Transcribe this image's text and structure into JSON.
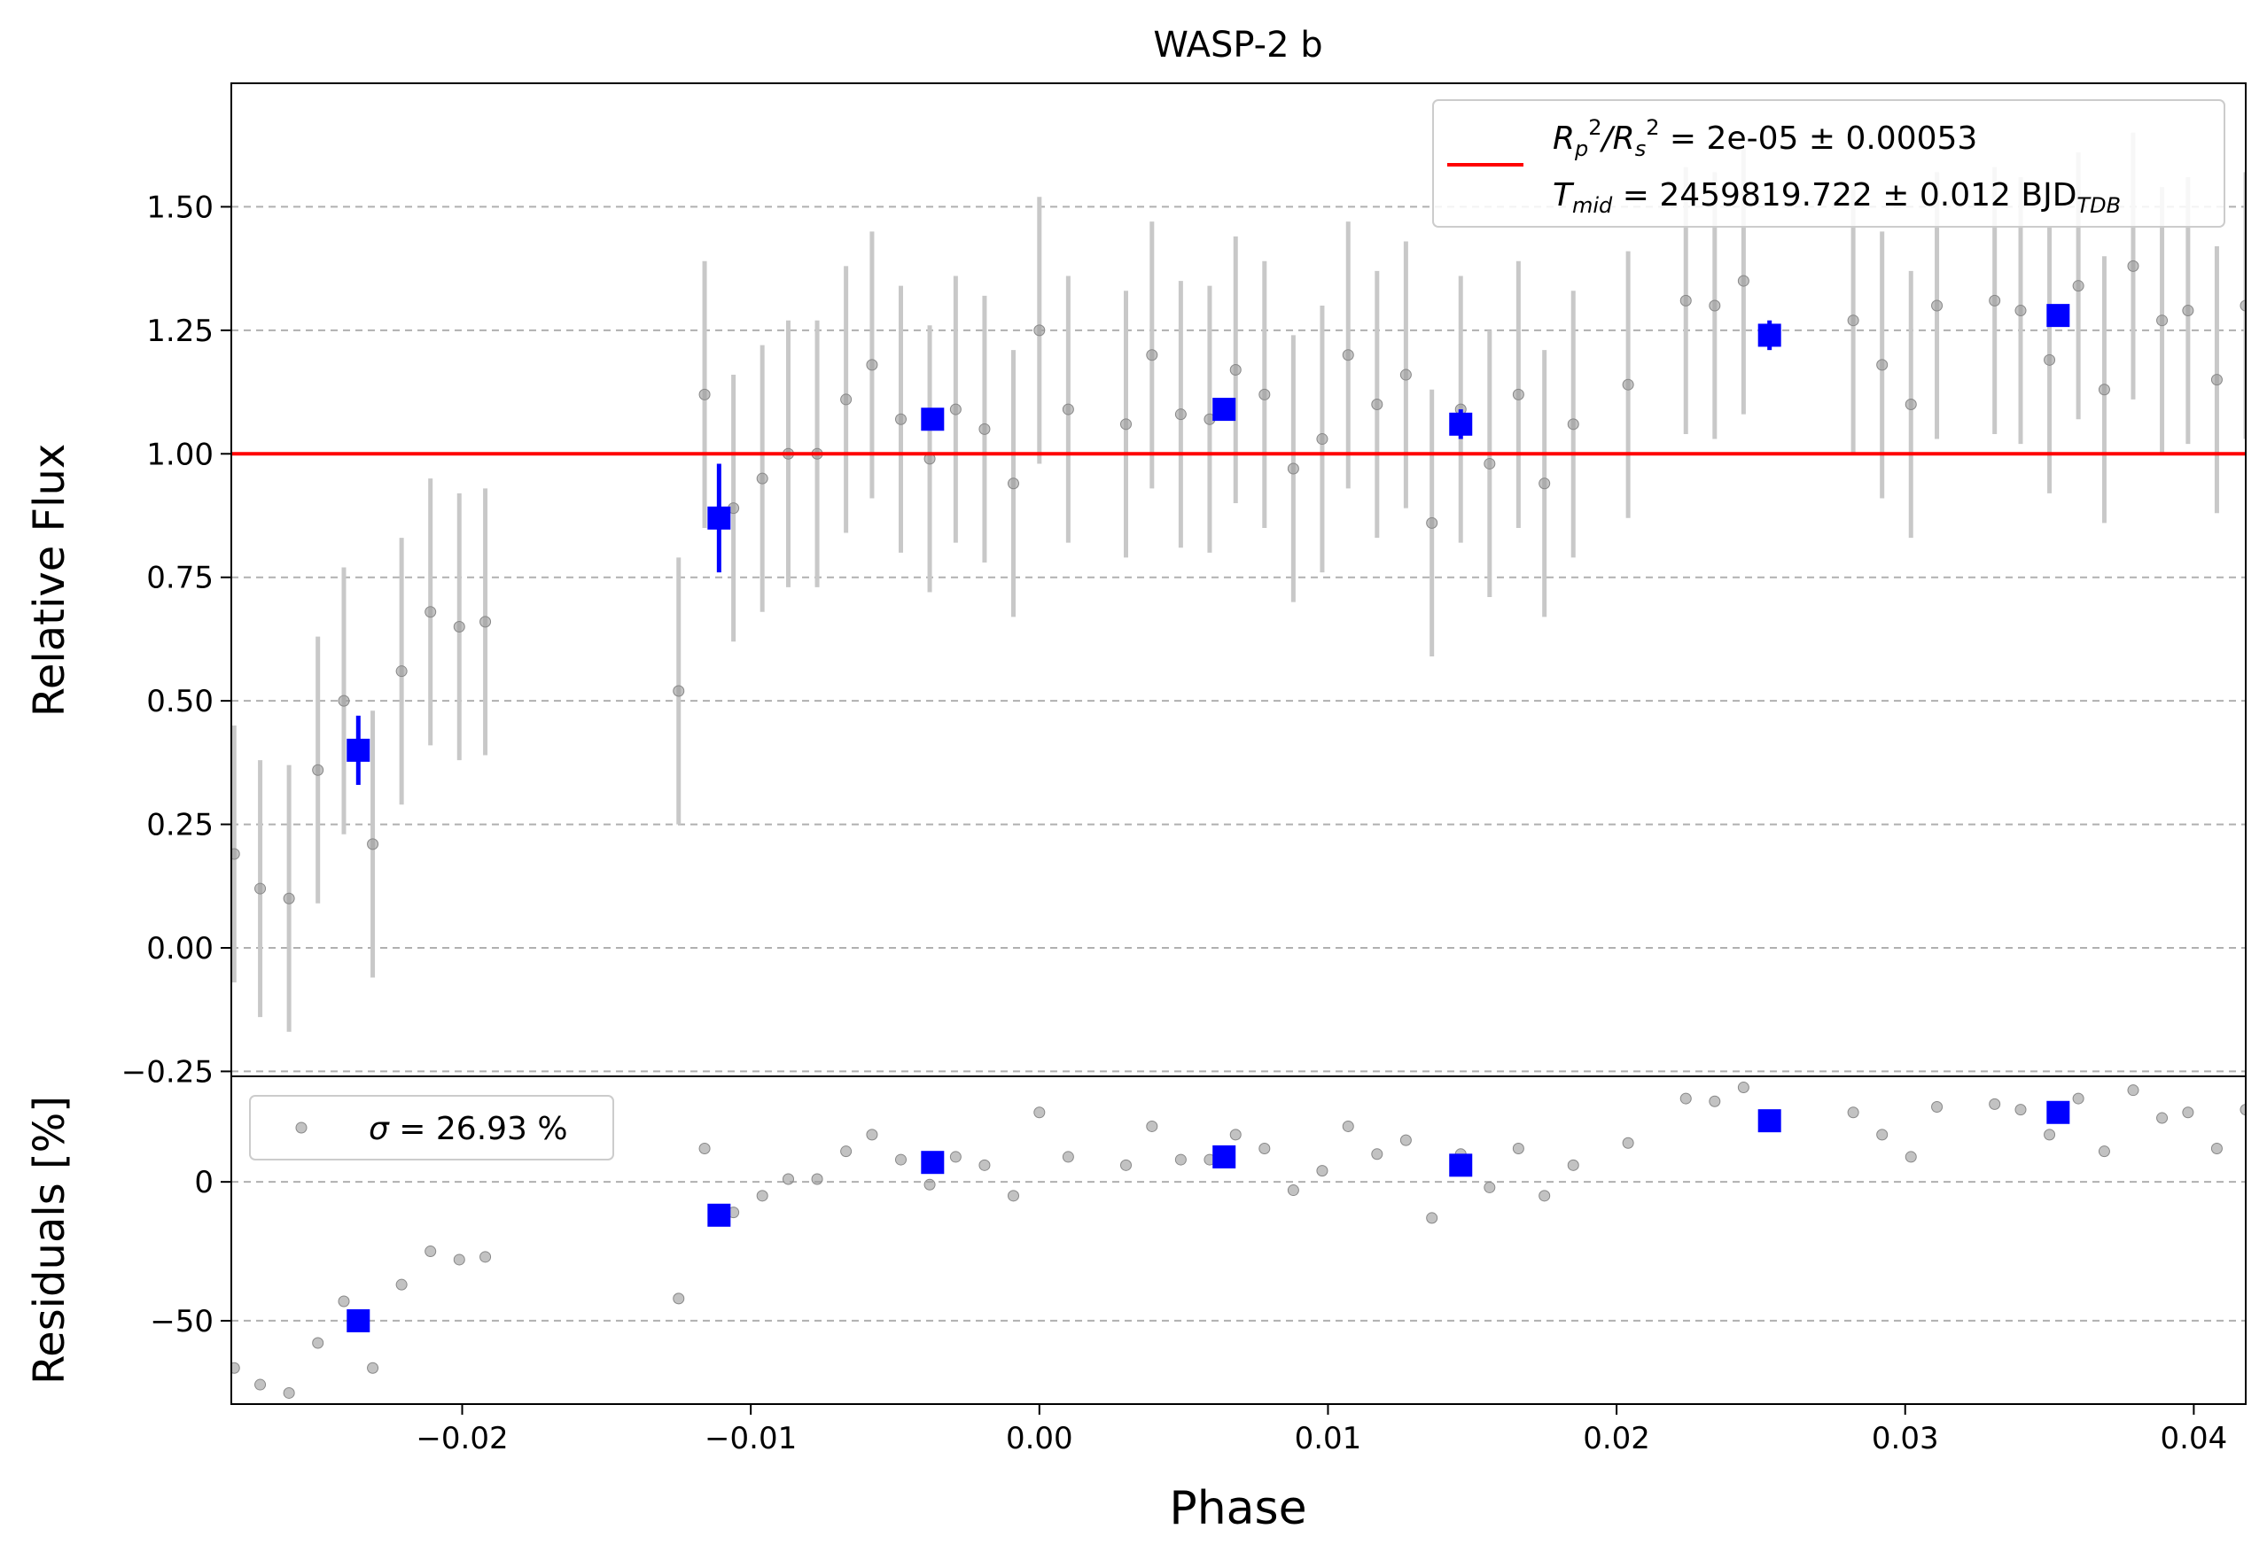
{
  "figure": {
    "title": "WASP-2 b",
    "xlabel": "Phase"
  },
  "chart_data": [
    {
      "type": "scatter",
      "panel": "top",
      "ylabel": "Relative Flux",
      "xlim": [
        -0.028,
        0.0418
      ],
      "ylim": [
        -0.26,
        1.75
      ],
      "xticks": [
        -0.02,
        -0.01,
        0.0,
        0.01,
        0.02,
        0.03,
        0.04
      ],
      "xtick_labels": [
        "−0.02",
        "−0.01",
        "0.00",
        "0.01",
        "0.02",
        "0.03",
        "0.04"
      ],
      "yticks": [
        -0.25,
        0.0,
        0.25,
        0.5,
        0.75,
        1.0,
        1.25,
        1.5
      ],
      "ytick_labels": [
        "−0.25",
        "0.00",
        "0.25",
        "0.50",
        "0.75",
        "1.00",
        "1.25",
        "1.50"
      ],
      "grid": "horizontal dashed",
      "legend": {
        "position": "top-right",
        "line1_prefix": "R",
        "line1_sub1": "p",
        "line1_sup1": "2",
        "line1_mid": "/R",
        "line1_sub2": "s",
        "line1_sup2": "2",
        "line1_rest": " = 2e-05 ± 0.00053",
        "line2_prefix": "T",
        "line2_sub": "mid",
        "line2_rest": " = 2459819.722 ± 0.012 BJD",
        "line2_sub2": "TDB"
      },
      "model": {
        "name": "model",
        "y": 1.0,
        "color": "#ff0000"
      },
      "series": [
        {
          "name": "data",
          "color": "#999999",
          "errorbar_color": "#c8c8c8",
          "x": [
            -0.0279,
            -0.027,
            -0.026,
            -0.025,
            -0.0241,
            -0.0231,
            -0.0221,
            -0.0211,
            -0.0201,
            -0.0192,
            -0.0125,
            -0.0116,
            -0.0106,
            -0.0096,
            -0.0087,
            -0.0077,
            -0.0067,
            -0.0058,
            -0.0048,
            -0.0038,
            -0.0029,
            -0.0019,
            -0.0009,
            0.0,
            0.001,
            0.003,
            0.0039,
            0.0049,
            0.0059,
            0.0068,
            0.0078,
            0.0088,
            0.0098,
            0.0107,
            0.0117,
            0.0127,
            0.0136,
            0.0146,
            0.0156,
            0.0166,
            0.0175,
            0.0185,
            0.0204,
            0.0224,
            0.0234,
            0.0244,
            0.0282,
            0.0292,
            0.0302,
            0.0311,
            0.0331,
            0.034,
            0.035,
            0.036,
            0.0369,
            0.0379,
            0.0389,
            0.0398,
            0.0408,
            0.0418
          ],
          "y": [
            0.19,
            0.12,
            0.1,
            0.36,
            0.5,
            0.21,
            0.56,
            0.68,
            0.65,
            0.66,
            0.52,
            1.12,
            0.89,
            0.95,
            1.0,
            1.0,
            1.11,
            1.18,
            1.07,
            0.99,
            1.09,
            1.05,
            0.94,
            1.25,
            1.09,
            1.06,
            1.2,
            1.08,
            1.07,
            1.17,
            1.12,
            0.97,
            1.03,
            1.2,
            1.1,
            1.16,
            0.86,
            1.09,
            0.98,
            1.12,
            0.94,
            1.06,
            1.14,
            1.31,
            1.3,
            1.35,
            1.27,
            1.18,
            1.1,
            1.3,
            1.31,
            1.29,
            1.19,
            1.34,
            1.13,
            1.38,
            1.27,
            1.29,
            1.15,
            1.3
          ],
          "yerr": [
            0.26,
            0.26,
            0.27,
            0.27,
            0.27,
            0.27,
            0.27,
            0.27,
            0.27,
            0.27,
            0.27,
            0.27,
            0.27,
            0.27,
            0.27,
            0.27,
            0.27,
            0.27,
            0.27,
            0.27,
            0.27,
            0.27,
            0.27,
            0.27,
            0.27,
            0.27,
            0.27,
            0.27,
            0.27,
            0.27,
            0.27,
            0.27,
            0.27,
            0.27,
            0.27,
            0.27,
            0.27,
            0.27,
            0.27,
            0.27,
            0.27,
            0.27,
            0.27,
            0.27,
            0.27,
            0.27,
            0.27,
            0.27,
            0.27,
            0.27,
            0.27,
            0.27,
            0.27,
            0.27,
            0.27,
            0.27,
            0.27,
            0.27,
            0.27,
            0.27
          ]
        },
        {
          "name": "binned",
          "color": "#0000ff",
          "x": [
            -0.0236,
            -0.0111,
            -0.0037,
            0.0064,
            0.0146,
            0.0253,
            0.0353
          ],
          "y": [
            0.4,
            0.87,
            1.07,
            1.09,
            1.06,
            1.24,
            1.28
          ],
          "yerr": [
            0.07,
            0.11,
            0.0,
            0.0,
            0.03,
            0.03,
            0.0
          ]
        }
      ]
    },
    {
      "type": "scatter",
      "panel": "bottom",
      "ylabel": "Residuals [%]",
      "xlim": [
        -0.028,
        0.0418
      ],
      "ylim": [
        -80,
        38
      ],
      "yticks": [
        -50,
        0
      ],
      "ytick_labels": [
        "−50",
        "0"
      ],
      "grid": "horizontal dashed",
      "legend": {
        "position": "top-left",
        "prefix": "σ",
        "text": " = 26.93 %"
      },
      "series": [
        {
          "name": "residuals",
          "color": "#999999",
          "x": [
            -0.0279,
            -0.027,
            -0.026,
            -0.025,
            -0.0241,
            -0.0231,
            -0.0221,
            -0.0211,
            -0.0201,
            -0.0192,
            -0.0125,
            -0.0116,
            -0.0106,
            -0.0096,
            -0.0087,
            -0.0077,
            -0.0067,
            -0.0058,
            -0.0048,
            -0.0038,
            -0.0029,
            -0.0019,
            -0.0009,
            0.0,
            0.001,
            0.003,
            0.0039,
            0.0049,
            0.0059,
            0.0068,
            0.0078,
            0.0088,
            0.0098,
            0.0107,
            0.0117,
            0.0127,
            0.0136,
            0.0146,
            0.0156,
            0.0166,
            0.0175,
            0.0185,
            0.0204,
            0.0224,
            0.0234,
            0.0244,
            0.0282,
            0.0292,
            0.0302,
            0.0311,
            0.0331,
            0.034,
            0.035,
            0.036,
            0.0369,
            0.0379,
            0.0389,
            0.0398,
            0.0408,
            0.0418
          ],
          "y": [
            -67,
            -73,
            -76,
            -58,
            -43,
            -67,
            -37,
            -25,
            -28,
            -27,
            -42,
            12,
            -11,
            -5,
            1,
            1,
            11,
            17,
            8,
            -1,
            9,
            6,
            -5,
            25,
            9,
            6,
            20,
            8,
            8,
            17,
            12,
            -3,
            4,
            20,
            10,
            15,
            -13,
            10,
            -2,
            12,
            -5,
            6,
            14,
            30,
            29,
            34,
            25,
            17,
            9,
            27,
            28,
            26,
            17,
            30,
            11,
            33,
            23,
            25,
            12,
            26
          ]
        },
        {
          "name": "binned residuals",
          "color": "#0000ff",
          "x": [
            -0.0236,
            -0.0111,
            -0.0037,
            0.0064,
            0.0146,
            0.0253,
            0.0353
          ],
          "y": [
            -50,
            -12,
            7,
            9,
            6,
            22,
            25
          ]
        }
      ]
    }
  ]
}
